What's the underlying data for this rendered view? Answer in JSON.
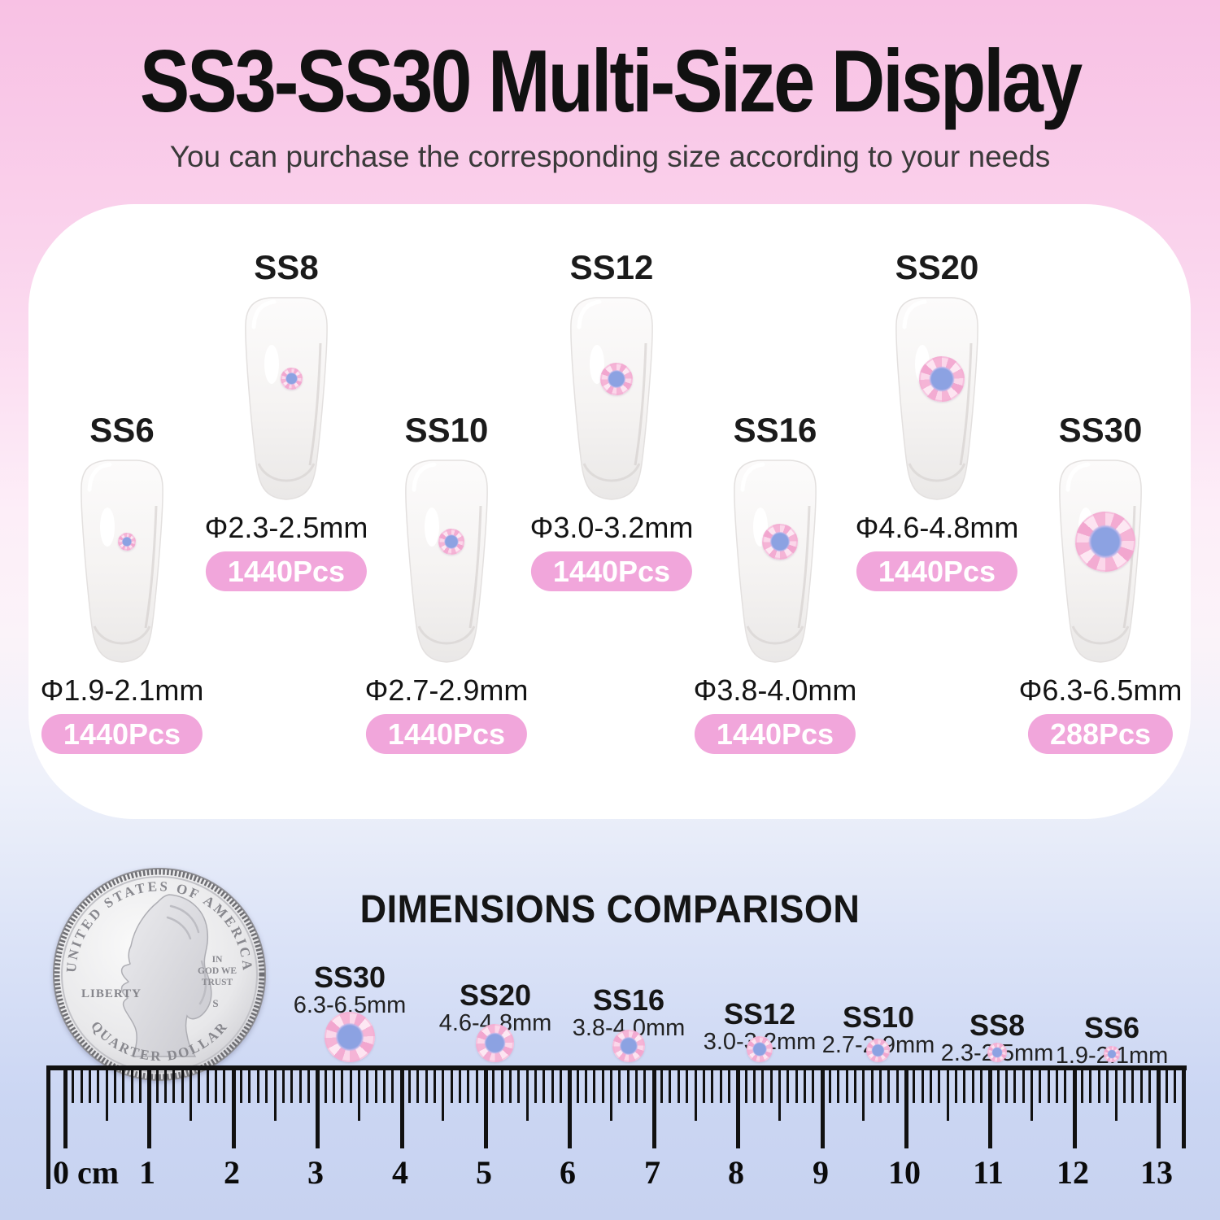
{
  "header": {
    "title": "SS3-SS30 Multi-Size Display",
    "subtitle": "You can purchase the corresponding size according to your needs"
  },
  "panel": {
    "items": [
      {
        "label": "SS6",
        "diameter": "Φ1.9-2.1mm",
        "count": "1440Pcs"
      },
      {
        "label": "SS8",
        "diameter": "Φ2.3-2.5mm",
        "count": "1440Pcs"
      },
      {
        "label": "SS10",
        "diameter": "Φ2.7-2.9mm",
        "count": "1440Pcs"
      },
      {
        "label": "SS12",
        "diameter": "Φ3.0-3.2mm",
        "count": "1440Pcs"
      },
      {
        "label": "SS16",
        "diameter": "Φ3.8-4.0mm",
        "count": "1440Pcs"
      },
      {
        "label": "SS20",
        "diameter": "Φ4.6-4.8mm",
        "count": "1440Pcs"
      },
      {
        "label": "SS30",
        "diameter": "Φ6.3-6.5mm",
        "count": "288Pcs"
      }
    ]
  },
  "comparison": {
    "title": "DIMENSIONS COMPARISON",
    "items": [
      {
        "label": "SS30",
        "size": "6.3-6.5mm"
      },
      {
        "label": "SS20",
        "size": "4.6-4.8mm"
      },
      {
        "label": "SS16",
        "size": "3.8-4.0mm"
      },
      {
        "label": "SS12",
        "size": "3.0-3.2mm"
      },
      {
        "label": "SS10",
        "size": "2.7-2.9mm"
      },
      {
        "label": "SS8",
        "size": "2.3-2.5mm"
      },
      {
        "label": "SS6",
        "size": "1.9-2.1mm"
      }
    ],
    "coin": {
      "top_text": "UNITED STATES OF AMERICA",
      "bottom_text": "QUARTER DOLLAR",
      "left_text": "LIBERTY",
      "motto_line1": "IN",
      "motto_line2": "GOD WE",
      "motto_line3": "TRUST",
      "mint_mark": "S"
    }
  },
  "ruler": {
    "labels": [
      "0 cm",
      "1",
      "2",
      "3",
      "4",
      "5",
      "6",
      "7",
      "8",
      "9",
      "10",
      "11",
      "12",
      "13"
    ]
  },
  "colors": {
    "badge_pink": "#f1a6db",
    "top_pink": "#f8c1e4",
    "bottom_blue": "#c7d2f0",
    "stone_center_blue": "#8ca2e2",
    "stone_outer_pink": "#f3abd2"
  }
}
